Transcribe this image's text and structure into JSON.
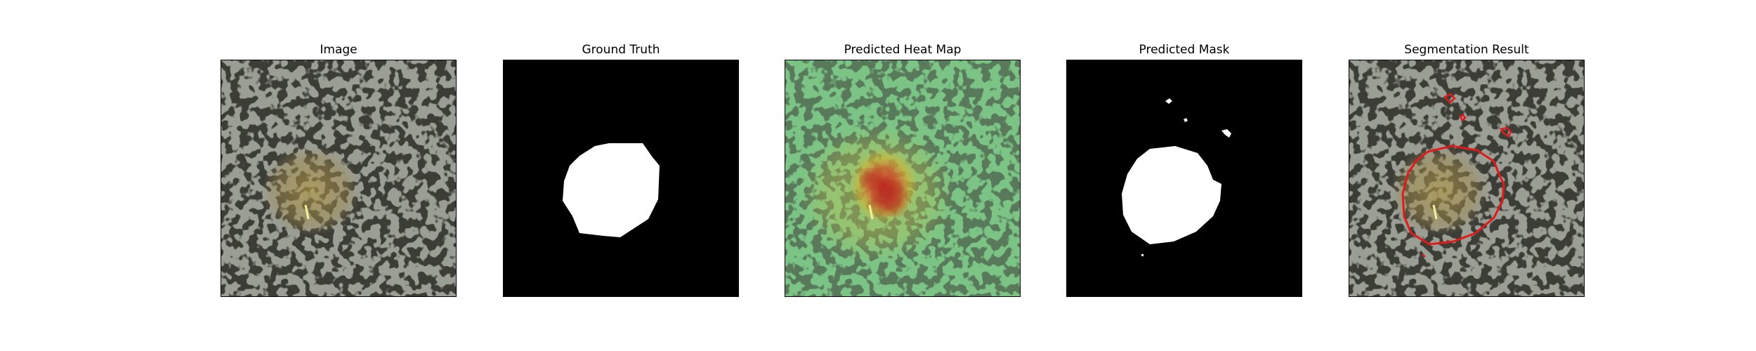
{
  "panels": [
    {
      "title": "Image",
      "icon": "speckled-texture-image"
    },
    {
      "title": "Ground Truth",
      "icon": "binary-mask-image"
    },
    {
      "title": "Predicted Heat Map",
      "icon": "heatmap-overlay-image"
    },
    {
      "title": "Predicted Mask",
      "icon": "binary-mask-image"
    },
    {
      "title": "Segmentation Result",
      "icon": "contour-overlay-image"
    }
  ],
  "colors": {
    "texture_light": "#9b9e95",
    "texture_dark": "#3c3d37",
    "mask_background": "#000000",
    "mask_foreground": "#ffffff",
    "heatmap_base": "#6fbf7a",
    "heatmap_hot": "#d6392b",
    "defect_tint": "#a08a4b",
    "contour": "#e01b1b"
  }
}
